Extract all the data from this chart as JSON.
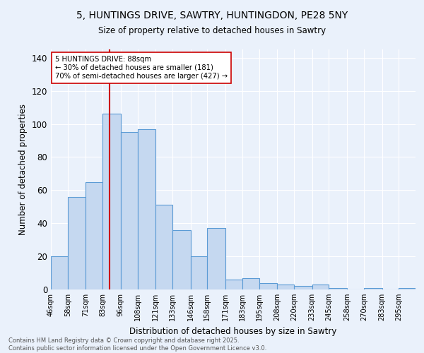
{
  "title1": "5, HUNTINGS DRIVE, SAWTRY, HUNTINGDON, PE28 5NY",
  "title2": "Size of property relative to detached houses in Sawtry",
  "xlabel": "Distribution of detached houses by size in Sawtry",
  "ylabel": "Number of detached properties",
  "categories": [
    "46sqm",
    "58sqm",
    "71sqm",
    "83sqm",
    "96sqm",
    "108sqm",
    "121sqm",
    "133sqm",
    "146sqm",
    "158sqm",
    "171sqm",
    "183sqm",
    "195sqm",
    "208sqm",
    "220sqm",
    "233sqm",
    "245sqm",
    "258sqm",
    "270sqm",
    "283sqm",
    "295sqm"
  ],
  "bar_colors": "#c5d8f0",
  "bar_edge_color": "#5b9bd5",
  "vline_x": 88,
  "vline_color": "#cc0000",
  "annotation_text": "5 HUNTINGS DRIVE: 88sqm\n← 30% of detached houses are smaller (181)\n70% of semi-detached houses are larger (427) →",
  "annotation_box_color": "#ffffff",
  "annotation_box_edge": "#cc0000",
  "ylim": [
    0,
    145
  ],
  "yticks": [
    0,
    20,
    40,
    60,
    80,
    100,
    120,
    140
  ],
  "bg_color": "#eaf1fb",
  "footer_text": "Contains HM Land Registry data © Crown copyright and database right 2025.\nContains public sector information licensed under the Open Government Licence v3.0.",
  "bin_edges": [
    46,
    58,
    71,
    83,
    96,
    108,
    121,
    133,
    146,
    158,
    171,
    183,
    195,
    208,
    220,
    233,
    245,
    258,
    270,
    283,
    295,
    307
  ],
  "hist_values": [
    20,
    56,
    65,
    106,
    95,
    97,
    51,
    36,
    20,
    37,
    6,
    7,
    4,
    3,
    2,
    3,
    1,
    0,
    1,
    0,
    1
  ]
}
